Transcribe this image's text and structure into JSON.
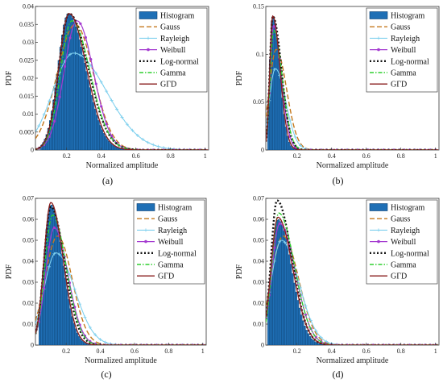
{
  "legend_names": [
    "Histogram",
    "Gauss",
    "Rayleigh",
    "Weibull",
    "Log-normal",
    "Gamma",
    "GΓD"
  ],
  "colors": {
    "histogram_fill": "#1f6fb5",
    "histogram_edge": "#0b3f70",
    "Gauss": "#c4781d",
    "Rayleigh": "#7fd0ee",
    "Weibull": "#a43ad0",
    "Log-normal": "#111111",
    "Gamma": "#2fcf2f",
    "GΓD": "#8a1e1e"
  },
  "chart_data": [
    {
      "panel": "(a)",
      "type": "bar",
      "xlabel": "Normalized amplitude",
      "ylabel": "PDF",
      "xlim": [
        0.02,
        1.02
      ],
      "ylim": [
        0,
        0.04
      ],
      "xticks": [
        "0.2",
        "0.4",
        "0.6",
        "0.8",
        "1"
      ],
      "yticks": [
        "0",
        "0.005",
        "0.01",
        "0.015",
        "0.02",
        "0.025",
        "0.03",
        "0.035",
        "0.04"
      ],
      "histogram": {
        "bin_start": 0.05,
        "bin_width": 0.01,
        "peak_x": 0.21,
        "peak_y": 0.038,
        "sigma_left": 0.06,
        "sigma_right": 0.1,
        "n_bins": 70
      },
      "curves": [
        {
          "name": "Gauss",
          "peak_x": 0.25,
          "peak_y": 0.035,
          "sigma_left": 0.105,
          "sigma_right": 0.105
        },
        {
          "name": "Rayleigh",
          "peak_x": 0.24,
          "peak_y": 0.027,
          "sigma_left": 0.12,
          "sigma_right": 0.19
        },
        {
          "name": "Weibull",
          "peak_x": 0.26,
          "peak_y": 0.036,
          "sigma_left": 0.075,
          "sigma_right": 0.095
        },
        {
          "name": "Log-normal",
          "peak_x": 0.215,
          "peak_y": 0.038,
          "sigma_left": 0.06,
          "sigma_right": 0.11
        },
        {
          "name": "Gamma",
          "peak_x": 0.23,
          "peak_y": 0.036,
          "sigma_left": 0.065,
          "sigma_right": 0.105
        },
        {
          "name": "GΓD",
          "peak_x": 0.215,
          "peak_y": 0.038,
          "sigma_left": 0.06,
          "sigma_right": 0.1
        }
      ]
    },
    {
      "panel": "(b)",
      "type": "bar",
      "xlabel": "Normalized amplitude",
      "ylabel": "PDF",
      "xlim": [
        0.02,
        1.02
      ],
      "ylim": [
        0,
        0.15
      ],
      "xticks": [
        "0.2",
        "0.4",
        "0.6",
        "0.8",
        "1"
      ],
      "yticks": [
        "0",
        "0.05",
        "0.1",
        "0.15"
      ],
      "histogram": {
        "bin_start": 0.03,
        "bin_width": 0.01,
        "peak_x": 0.06,
        "peak_y": 0.14,
        "sigma_left": 0.017,
        "sigma_right": 0.04,
        "n_bins": 55
      },
      "curves": [
        {
          "name": "Gauss",
          "peak_x": 0.08,
          "peak_y": 0.105,
          "sigma_left": 0.04,
          "sigma_right": 0.06
        },
        {
          "name": "Rayleigh",
          "peak_x": 0.075,
          "peak_y": 0.085,
          "sigma_left": 0.035,
          "sigma_right": 0.06
        },
        {
          "name": "Weibull",
          "peak_x": 0.065,
          "peak_y": 0.13,
          "sigma_left": 0.02,
          "sigma_right": 0.045
        },
        {
          "name": "Log-normal",
          "peak_x": 0.06,
          "peak_y": 0.14,
          "sigma_left": 0.017,
          "sigma_right": 0.05
        },
        {
          "name": "Gamma",
          "peak_x": 0.065,
          "peak_y": 0.125,
          "sigma_left": 0.02,
          "sigma_right": 0.05
        },
        {
          "name": "GΓD",
          "peak_x": 0.06,
          "peak_y": 0.14,
          "sigma_left": 0.017,
          "sigma_right": 0.042
        }
      ]
    },
    {
      "panel": "(c)",
      "type": "bar",
      "xlabel": "Normalized amplitude",
      "ylabel": "PDF",
      "xlim": [
        0.02,
        1.02
      ],
      "ylim": [
        0,
        0.07
      ],
      "xticks": [
        "0.2",
        "0.4",
        "0.6",
        "0.8",
        "1"
      ],
      "yticks": [
        "0",
        "0.01",
        "0.02",
        "0.03",
        "0.04",
        "0.05",
        "0.06",
        "0.07"
      ],
      "histogram": {
        "bin_start": 0.04,
        "bin_width": 0.01,
        "peak_x": 0.11,
        "peak_y": 0.067,
        "sigma_left": 0.04,
        "sigma_right": 0.07,
        "n_bins": 65
      },
      "curves": [
        {
          "name": "Gauss",
          "peak_x": 0.15,
          "peak_y": 0.052,
          "sigma_left": 0.075,
          "sigma_right": 0.085
        },
        {
          "name": "Rayleigh",
          "peak_x": 0.14,
          "peak_y": 0.044,
          "sigma_left": 0.07,
          "sigma_right": 0.11
        },
        {
          "name": "Weibull",
          "peak_x": 0.13,
          "peak_y": 0.056,
          "sigma_left": 0.05,
          "sigma_right": 0.08
        },
        {
          "name": "Log-normal",
          "peak_x": 0.11,
          "peak_y": 0.066,
          "sigma_left": 0.04,
          "sigma_right": 0.08
        },
        {
          "name": "Gamma",
          "peak_x": 0.12,
          "peak_y": 0.062,
          "sigma_left": 0.045,
          "sigma_right": 0.08
        },
        {
          "name": "GΓD",
          "peak_x": 0.11,
          "peak_y": 0.068,
          "sigma_left": 0.04,
          "sigma_right": 0.072
        }
      ]
    },
    {
      "panel": "(d)",
      "type": "bar",
      "xlabel": "Normalized amplitude",
      "ylabel": "PDF",
      "xlim": [
        0.02,
        1.02
      ],
      "ylim": [
        0,
        0.07
      ],
      "xticks": [
        "0.2",
        "0.4",
        "0.6",
        "0.8",
        "1"
      ],
      "yticks": [
        "0",
        "0.01",
        "0.02",
        "0.03",
        "0.04",
        "0.05",
        "0.06",
        "0.07"
      ],
      "histogram": {
        "bin_start": 0.03,
        "bin_width": 0.01,
        "peak_x": 0.09,
        "peak_y": 0.06,
        "sigma_left": 0.04,
        "sigma_right": 0.08,
        "n_bins": 70
      },
      "curves": [
        {
          "name": "Gauss",
          "peak_x": 0.12,
          "peak_y": 0.052,
          "sigma_left": 0.07,
          "sigma_right": 0.09
        },
        {
          "name": "Rayleigh",
          "peak_x": 0.11,
          "peak_y": 0.05,
          "sigma_left": 0.06,
          "sigma_right": 0.1
        },
        {
          "name": "Weibull",
          "peak_x": 0.1,
          "peak_y": 0.058,
          "sigma_left": 0.045,
          "sigma_right": 0.09
        },
        {
          "name": "Log-normal",
          "peak_x": 0.085,
          "peak_y": 0.069,
          "sigma_left": 0.035,
          "sigma_right": 0.085
        },
        {
          "name": "Gamma",
          "peak_x": 0.095,
          "peak_y": 0.063,
          "sigma_left": 0.04,
          "sigma_right": 0.09
        },
        {
          "name": "GΓD",
          "peak_x": 0.09,
          "peak_y": 0.061,
          "sigma_left": 0.04,
          "sigma_right": 0.085
        }
      ]
    }
  ]
}
